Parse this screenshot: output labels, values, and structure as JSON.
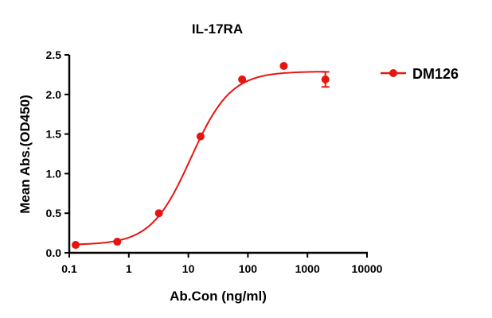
{
  "chart_data": {
    "type": "scatter",
    "title": "IL-17RA",
    "xlabel": "Ab.Con (ng/ml)",
    "ylabel": "Mean Abs.(OD450)",
    "xscale": "log",
    "xlim": [
      0.1,
      10000
    ],
    "ylim": [
      0,
      2.5
    ],
    "xticks": [
      "0.1",
      "1",
      "10",
      "100",
      "1000",
      "10000"
    ],
    "xtick_values": [
      0.1,
      1,
      10,
      100,
      1000,
      10000
    ],
    "yticks": [
      "0.0",
      "0.5",
      "1.0",
      "1.5",
      "2.0",
      "2.5"
    ],
    "ytick_values": [
      0,
      0.5,
      1.0,
      1.5,
      2.0,
      2.5
    ],
    "grid": false,
    "legend_position": "right",
    "color": "#e8140f",
    "series": [
      {
        "name": "DM126",
        "x": [
          0.128,
          0.64,
          3.2,
          16,
          80,
          400,
          2000
        ],
        "y": [
          0.1,
          0.14,
          0.5,
          1.47,
          2.19,
          2.36,
          2.19
        ],
        "error": [
          0,
          0,
          0,
          0,
          0,
          0,
          0.095
        ],
        "fit": {
          "model": "4PL",
          "bottom": 0.1,
          "top": 2.29,
          "ec50": 11,
          "hill": 1.3
        }
      }
    ]
  }
}
